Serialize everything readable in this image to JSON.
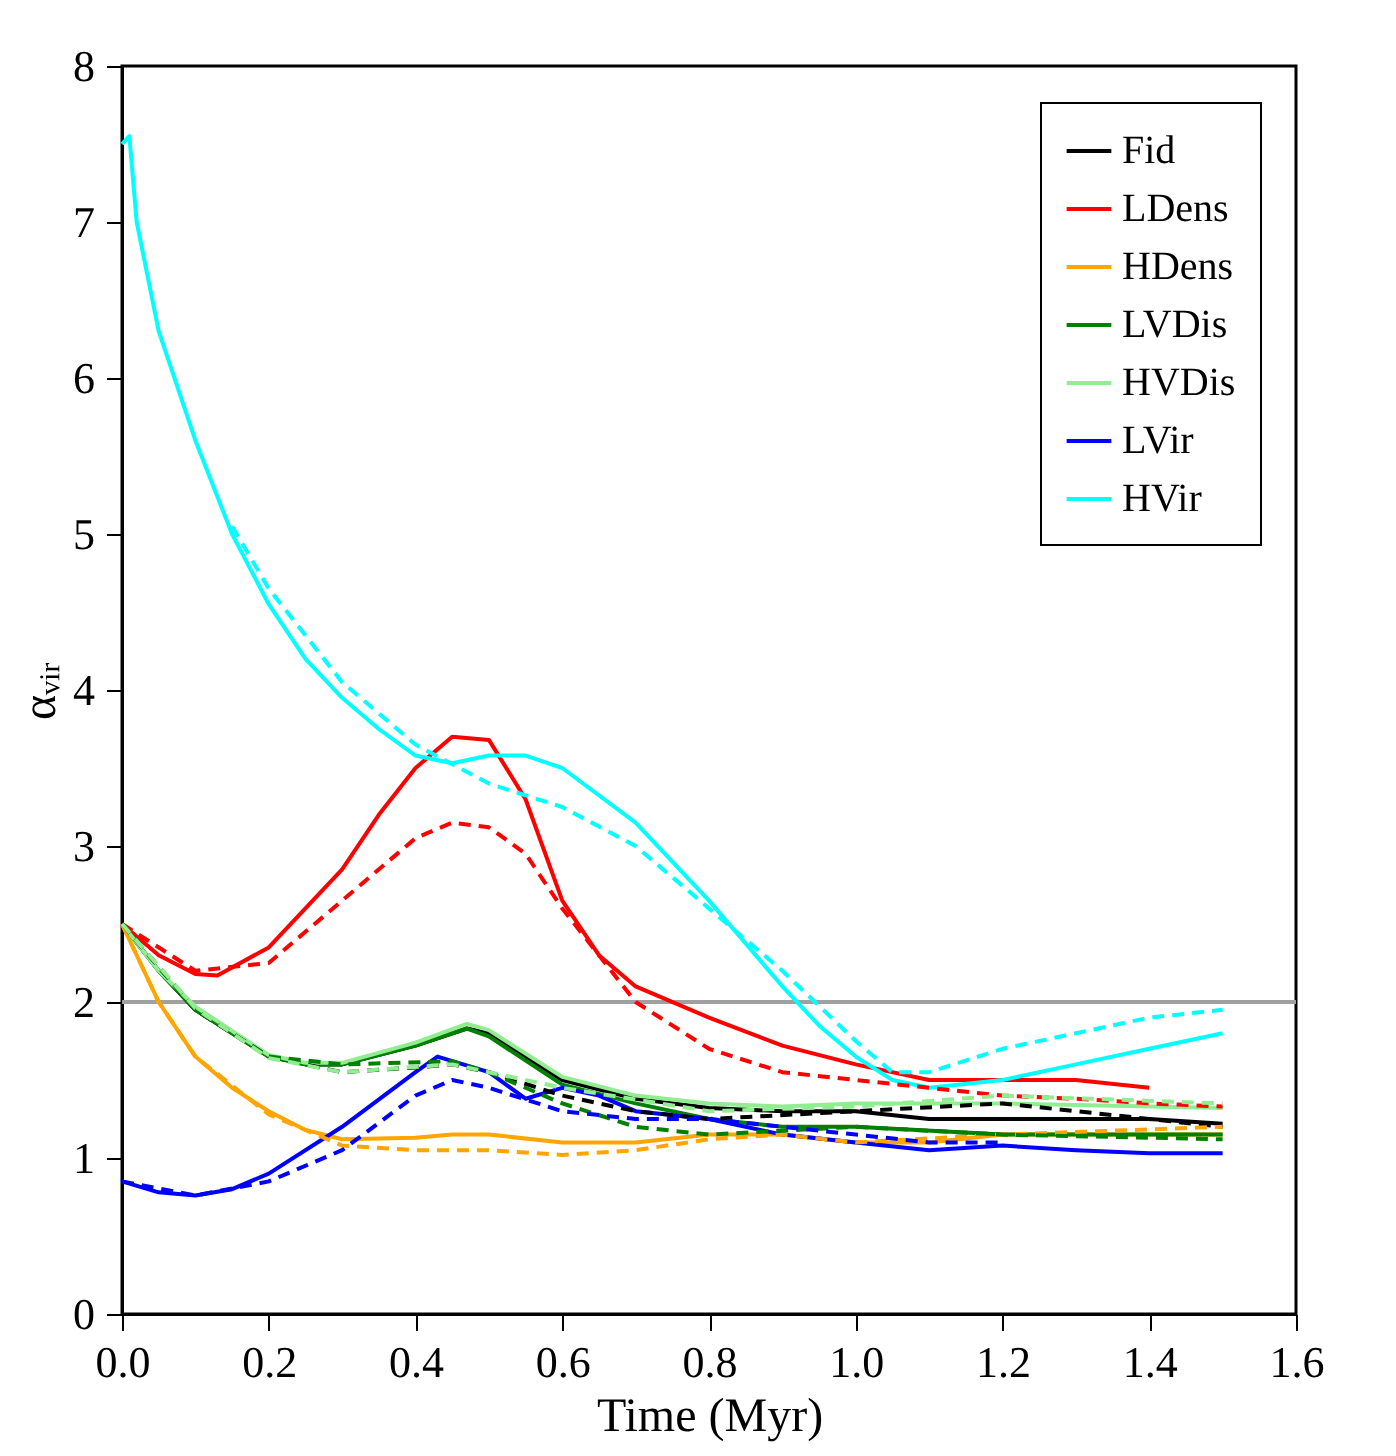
{
  "chart_data": {
    "type": "line",
    "xlabel": "Time (Myr)",
    "ylabel": "αᵥᵢᵣ",
    "xlim": [
      0,
      1.6
    ],
    "xticks": [
      {
        "value": 0,
        "label": "0.0"
      },
      0.2,
      0.4,
      0.6,
      0.8,
      {
        "value": 1,
        "label": "1.0"
      },
      1.2,
      1.4,
      1.6
    ],
    "ylim": [
      0,
      8
    ],
    "yticks": [
      0,
      1,
      2,
      3,
      4,
      5,
      6,
      7,
      8
    ],
    "grid": false,
    "legend": "top right",
    "ref_lines": [
      {
        "axis": "y",
        "value": 2,
        "color": "#a0a0a0"
      }
    ],
    "series": [
      {
        "name": "Fid",
        "color": "#000000",
        "line_style": "solid",
        "x": [
          0,
          0.05,
          0.1,
          0.2,
          0.25,
          0.3,
          0.4,
          0.47,
          0.5,
          0.6,
          0.7,
          0.8,
          0.9,
          1.0,
          1.1,
          1.2,
          1.3,
          1.4,
          1.5
        ],
        "values": [
          2.5,
          2.2,
          1.95,
          1.65,
          1.6,
          1.6,
          1.72,
          1.83,
          1.8,
          1.5,
          1.38,
          1.32,
          1.3,
          1.3,
          1.25,
          1.25,
          1.25,
          1.25,
          1.22
        ]
      },
      {
        "name": "LDens",
        "color": "#ff0000",
        "line_style": "solid",
        "x": [
          0,
          0.05,
          0.1,
          0.13,
          0.2,
          0.3,
          0.35,
          0.4,
          0.45,
          0.5,
          0.55,
          0.6,
          0.65,
          0.7,
          0.8,
          0.9,
          1.0,
          1.1,
          1.2,
          1.3,
          1.4
        ],
        "values": [
          2.5,
          2.3,
          2.18,
          2.17,
          2.35,
          2.85,
          3.2,
          3.5,
          3.7,
          3.68,
          3.3,
          2.65,
          2.3,
          2.1,
          1.9,
          1.72,
          1.6,
          1.5,
          1.5,
          1.5,
          1.45
        ]
      },
      {
        "name": "HDens",
        "color": "#ffa500",
        "line_style": "solid",
        "x": [
          0,
          0.05,
          0.1,
          0.15,
          0.2,
          0.25,
          0.3,
          0.4,
          0.45,
          0.5,
          0.6,
          0.7,
          0.8,
          0.9,
          1.0,
          1.1,
          1.2,
          1.3,
          1.4,
          1.5
        ],
        "values": [
          2.5,
          2.0,
          1.65,
          1.45,
          1.3,
          1.18,
          1.12,
          1.13,
          1.15,
          1.15,
          1.1,
          1.1,
          1.15,
          1.15,
          1.1,
          1.1,
          1.15,
          1.15,
          1.15,
          1.15
        ]
      },
      {
        "name": "LVDis",
        "color": "#008000",
        "line_style": "solid",
        "x": [
          0,
          0.05,
          0.1,
          0.2,
          0.25,
          0.3,
          0.4,
          0.47,
          0.5,
          0.6,
          0.7,
          0.8,
          0.9,
          1.0,
          1.2,
          1.5
        ],
        "values": [
          2.5,
          2.2,
          1.95,
          1.65,
          1.6,
          1.6,
          1.72,
          1.83,
          1.78,
          1.47,
          1.35,
          1.25,
          1.2,
          1.2,
          1.15,
          1.15
        ]
      },
      {
        "name": "HVDis",
        "color": "#90ee90",
        "line_style": "solid",
        "x": [
          0,
          0.05,
          0.1,
          0.2,
          0.25,
          0.3,
          0.4,
          0.47,
          0.5,
          0.6,
          0.7,
          0.8,
          0.9,
          1.0,
          1.2,
          1.5
        ],
        "values": [
          2.5,
          2.2,
          1.97,
          1.66,
          1.61,
          1.61,
          1.74,
          1.86,
          1.82,
          1.52,
          1.4,
          1.35,
          1.33,
          1.35,
          1.35,
          1.32
        ]
      },
      {
        "name": "LVir",
        "color": "#0000ff",
        "line_style": "solid",
        "x": [
          0,
          0.05,
          0.1,
          0.15,
          0.2,
          0.3,
          0.4,
          0.43,
          0.5,
          0.55,
          0.6,
          0.65,
          0.7,
          0.8,
          0.9,
          1.0,
          1.1,
          1.2,
          1.3,
          1.4,
          1.5
        ],
        "values": [
          0.85,
          0.78,
          0.76,
          0.8,
          0.9,
          1.2,
          1.55,
          1.65,
          1.55,
          1.38,
          1.45,
          1.4,
          1.3,
          1.25,
          1.15,
          1.1,
          1.05,
          1.08,
          1.05,
          1.03,
          1.03
        ]
      },
      {
        "name": "HVir",
        "color": "#00ffff",
        "line_style": "solid",
        "x": [
          0,
          0.01,
          0.02,
          0.05,
          0.1,
          0.15,
          0.2,
          0.25,
          0.3,
          0.35,
          0.4,
          0.45,
          0.5,
          0.55,
          0.6,
          0.7,
          0.8,
          0.9,
          0.95,
          1.0,
          1.05,
          1.1,
          1.2,
          1.3,
          1.4,
          1.5
        ],
        "values": [
          7.5,
          7.55,
          7.0,
          6.3,
          5.6,
          5.0,
          4.55,
          4.2,
          3.95,
          3.75,
          3.58,
          3.53,
          3.58,
          3.58,
          3.5,
          3.15,
          2.65,
          2.1,
          1.85,
          1.65,
          1.5,
          1.45,
          1.5,
          1.6,
          1.7,
          1.8
        ]
      },
      {
        "color": "#000000",
        "line_style": "dashed",
        "x": [
          0,
          0.1,
          0.2,
          0.3,
          0.4,
          0.45,
          0.5,
          0.6,
          0.7,
          0.8,
          1.0,
          1.2,
          1.4,
          1.5
        ],
        "values": [
          2.5,
          1.95,
          1.65,
          1.55,
          1.58,
          1.6,
          1.55,
          1.4,
          1.3,
          1.25,
          1.3,
          1.35,
          1.25,
          1.2
        ]
      },
      {
        "color": "#ff0000",
        "line_style": "dashed",
        "x": [
          0,
          0.1,
          0.2,
          0.3,
          0.4,
          0.45,
          0.5,
          0.55,
          0.6,
          0.7,
          0.8,
          0.9,
          1.0,
          1.1,
          1.2,
          1.3,
          1.4,
          1.5
        ],
        "values": [
          2.5,
          2.2,
          2.25,
          2.65,
          3.05,
          3.15,
          3.12,
          2.95,
          2.6,
          2.0,
          1.7,
          1.55,
          1.5,
          1.45,
          1.4,
          1.38,
          1.35,
          1.33
        ]
      },
      {
        "color": "#ffa500",
        "line_style": "dashed",
        "x": [
          0,
          0.05,
          0.1,
          0.2,
          0.3,
          0.4,
          0.5,
          0.6,
          0.7,
          0.8,
          0.9,
          1.0,
          1.2,
          1.5
        ],
        "values": [
          2.5,
          2.0,
          1.65,
          1.28,
          1.08,
          1.05,
          1.05,
          1.02,
          1.05,
          1.12,
          1.15,
          1.1,
          1.15,
          1.2
        ]
      },
      {
        "color": "#008000",
        "line_style": "dashed",
        "x": [
          0,
          0.1,
          0.2,
          0.3,
          0.45,
          0.5,
          0.6,
          0.7,
          0.8,
          1.0,
          1.2,
          1.5
        ],
        "values": [
          2.5,
          1.95,
          1.65,
          1.6,
          1.62,
          1.55,
          1.35,
          1.2,
          1.15,
          1.2,
          1.15,
          1.12
        ]
      },
      {
        "color": "#90ee90",
        "line_style": "dashed",
        "x": [
          0,
          0.1,
          0.2,
          0.3,
          0.45,
          0.5,
          0.6,
          0.8,
          1.0,
          1.2,
          1.5
        ],
        "values": [
          2.5,
          1.96,
          1.64,
          1.55,
          1.6,
          1.55,
          1.45,
          1.3,
          1.33,
          1.4,
          1.35
        ]
      },
      {
        "color": "#0000ff",
        "line_style": "dashed",
        "x": [
          0,
          0.1,
          0.2,
          0.3,
          0.4,
          0.45,
          0.5,
          0.6,
          0.7,
          0.8,
          0.9,
          1.0,
          1.1,
          1.2
        ],
        "values": [
          0.85,
          0.76,
          0.85,
          1.05,
          1.4,
          1.5,
          1.45,
          1.3,
          1.25,
          1.25,
          1.2,
          1.15,
          1.1,
          1.1
        ]
      },
      {
        "color": "#00ffff",
        "line_style": "dashed",
        "x": [
          0.15,
          0.2,
          0.3,
          0.4,
          0.5,
          0.6,
          0.7,
          0.8,
          0.9,
          1.0,
          1.05,
          1.1,
          1.2,
          1.3,
          1.4,
          1.5
        ],
        "values": [
          5.05,
          4.65,
          4.05,
          3.65,
          3.4,
          3.25,
          3.0,
          2.6,
          2.2,
          1.75,
          1.55,
          1.55,
          1.7,
          1.8,
          1.9,
          1.95
        ]
      }
    ]
  }
}
